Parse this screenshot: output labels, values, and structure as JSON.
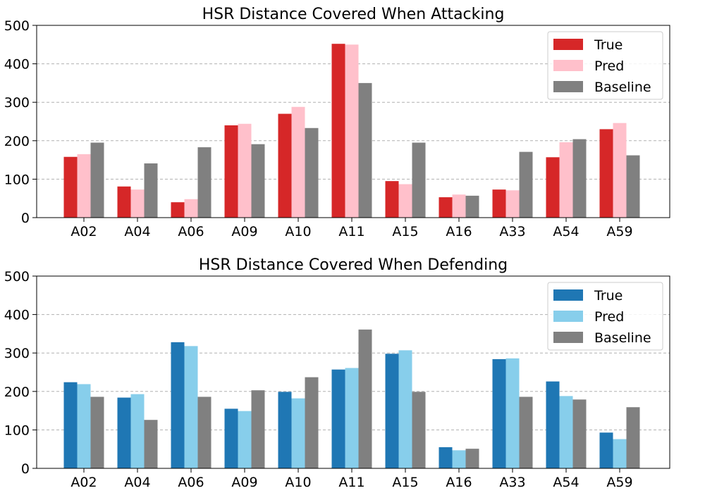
{
  "chart_data": [
    {
      "type": "bar",
      "title": "HSR Distance Covered When Attacking",
      "xlabel": "",
      "ylabel": "",
      "ylim": [
        0,
        500
      ],
      "yticks": [
        0,
        100,
        200,
        300,
        400,
        500
      ],
      "grid": true,
      "legend_position": "top-right",
      "categories": [
        "A02",
        "A04",
        "A06",
        "A09",
        "A10",
        "A11",
        "A15",
        "A16",
        "A33",
        "A54",
        "A59"
      ],
      "series": [
        {
          "name": "True",
          "color": "#d62728",
          "values": [
            158,
            81,
            40,
            240,
            270,
            452,
            95,
            53,
            73,
            157,
            230
          ]
        },
        {
          "name": "Pred",
          "color": "#ffc0cb",
          "values": [
            165,
            73,
            48,
            244,
            288,
            450,
            87,
            60,
            71,
            196,
            246
          ]
        },
        {
          "name": "Baseline",
          "color": "#808080",
          "values": [
            195,
            141,
            183,
            191,
            233,
            350,
            195,
            57,
            171,
            204,
            162
          ]
        }
      ]
    },
    {
      "type": "bar",
      "title": "HSR Distance Covered When Defending",
      "xlabel": "",
      "ylabel": "",
      "ylim": [
        0,
        500
      ],
      "yticks": [
        0,
        100,
        200,
        300,
        400,
        500
      ],
      "grid": true,
      "legend_position": "top-right",
      "categories": [
        "A02",
        "A04",
        "A06",
        "A09",
        "A10",
        "A11",
        "A15",
        "A16",
        "A33",
        "A54",
        "A59"
      ],
      "series": [
        {
          "name": "True",
          "color": "#1f77b4",
          "values": [
            224,
            184,
            328,
            155,
            199,
            257,
            298,
            55,
            284,
            226,
            93
          ]
        },
        {
          "name": "Pred",
          "color": "#87ceeb",
          "values": [
            219,
            193,
            318,
            149,
            182,
            261,
            307,
            47,
            286,
            188,
            76
          ]
        },
        {
          "name": "Baseline",
          "color": "#808080",
          "values": [
            186,
            126,
            186,
            203,
            237,
            361,
            199,
            51,
            186,
            179,
            159
          ]
        }
      ]
    }
  ]
}
